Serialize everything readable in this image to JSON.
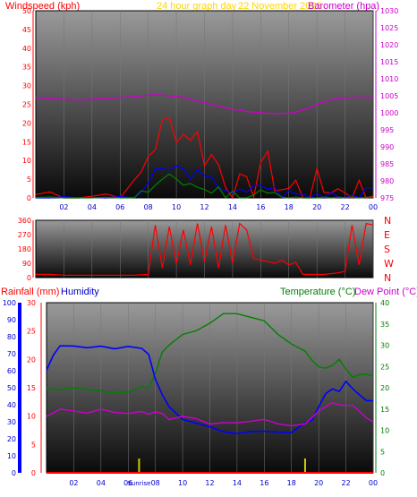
{
  "header": {
    "windspeed_label": "Windspeed (kph)",
    "graph_title": "24 hour graph day",
    "date": "22 November 2025",
    "barometer_label": "Barometer (hpa)"
  },
  "bottom_header": {
    "rainfall_label": "Rainfall (mm)",
    "humidity_label": "Humidity",
    "temperature_label": "Temperature (°C)",
    "dewpoint_label": "Dew Point (°C)"
  },
  "colors": {
    "windspeed": "#ff0000",
    "wind_mid": "#0000ff",
    "wind_low": "#008000",
    "barometer": "#cc00cc",
    "title": "#ffd700",
    "rainfall": "#ff0000",
    "humidity": "#0000ff",
    "temperature": "#008000",
    "dewpoint": "#cc00cc",
    "sun": "#cccc00"
  },
  "chart_data": [
    {
      "type": "line",
      "name": "wind-barometer",
      "x_ticks": [
        "02",
        "04",
        "06",
        "08",
        "10",
        "12",
        "14",
        "16",
        "18",
        "20",
        "22",
        "00"
      ],
      "wind_ticks": [
        "0",
        "5",
        "10",
        "15",
        "20",
        "25",
        "30",
        "35",
        "40",
        "45",
        "50"
      ],
      "baro_ticks": [
        "975",
        "980",
        "985",
        "990",
        "995",
        "1000",
        "1005",
        "1010",
        "1015",
        "1020",
        "1025",
        "1030"
      ],
      "wind_ylim": [
        0,
        50
      ],
      "baro_ylim": [
        975,
        1030
      ],
      "hours": [
        0,
        1,
        2,
        3,
        4,
        5,
        6,
        7,
        7.5,
        8,
        8.5,
        9,
        9.5,
        10,
        10.5,
        11,
        11.5,
        12,
        12.5,
        13,
        13.5,
        14,
        14.5,
        15,
        15.5,
        16,
        16.5,
        17,
        17.5,
        18,
        18.5,
        19,
        19.5,
        20,
        20.5,
        21,
        21.5,
        22,
        22.5,
        23,
        23.5,
        24
      ],
      "wind_gust": [
        1,
        1,
        1,
        1,
        1,
        1,
        1,
        1,
        6,
        12,
        15,
        18,
        20,
        19,
        17,
        18,
        16,
        12,
        11,
        9,
        6,
        3,
        2,
        1,
        4,
        10,
        8,
        5,
        3,
        2,
        3,
        2,
        1,
        3,
        2,
        4,
        2,
        3,
        2,
        2,
        1,
        2
      ],
      "wind_avg": [
        0,
        0,
        0,
        0,
        0,
        0,
        0,
        0,
        2,
        4,
        6,
        7,
        8,
        8,
        7,
        7,
        6,
        5,
        4,
        4,
        3,
        2,
        1,
        1,
        2,
        4,
        3,
        2,
        1,
        1,
        1,
        1,
        0,
        1,
        1,
        2,
        1,
        1,
        1,
        1,
        1,
        1
      ],
      "wind_low": [
        0,
        0,
        0,
        0,
        0,
        0,
        0,
        0,
        1,
        2,
        3,
        4,
        5,
        5,
        4,
        4,
        3,
        2,
        2,
        2,
        1,
        1,
        0,
        0,
        1,
        2,
        1,
        1,
        0,
        0,
        0,
        0,
        0,
        0,
        0,
        1,
        0,
        0,
        0,
        0,
        0,
        0
      ],
      "barometer": [
        1004.5,
        1004.2,
        1004,
        1003.8,
        1004,
        1004.2,
        1004.5,
        1004.8,
        1005,
        1005.2,
        1005.3,
        1005.2,
        1005,
        1004.8,
        1004.5,
        1004,
        1003.5,
        1003,
        1002.5,
        1002,
        1001.5,
        1001,
        1000.8,
        1000.4,
        1000.2,
        1000,
        999.9,
        999.8,
        999.8,
        999.9,
        1000.2,
        1000.8,
        1001.5,
        1002.5,
        1003.2,
        1003.8,
        1004.2,
        1004.4,
        1004.5,
        1004.6,
        1004.5,
        1004.6
      ]
    },
    {
      "type": "line",
      "name": "wind-direction",
      "dir_ticks": [
        "0",
        "90",
        "180",
        "270",
        "360"
      ],
      "compass": [
        "N",
        "W",
        "S",
        "E",
        "N"
      ],
      "ylim": [
        0,
        360
      ],
      "hours": [
        0,
        1,
        2,
        3,
        4,
        5,
        6,
        7,
        8,
        8.5,
        9,
        9.5,
        10,
        10.5,
        11,
        11.5,
        12,
        12.5,
        13,
        13.5,
        14,
        14.5,
        15,
        15.5,
        16,
        16.5,
        17,
        17.5,
        18,
        18.5,
        19,
        19.5,
        20,
        20.5,
        21,
        21.5,
        22,
        22.5,
        23,
        23.5,
        24
      ],
      "direction": [
        20,
        20,
        15,
        15,
        15,
        15,
        15,
        15,
        20,
        330,
        60,
        320,
        90,
        300,
        80,
        340,
        100,
        320,
        60,
        330,
        90,
        340,
        300,
        120,
        110,
        100,
        90,
        110,
        80,
        95,
        20,
        20,
        20,
        20,
        25,
        30,
        40,
        330,
        80,
        340,
        330
      ]
    },
    {
      "type": "line",
      "name": "rain-humidity-temperature",
      "x_ticks": [
        "02",
        "04",
        "06",
        "08",
        "10",
        "12",
        "14",
        "16",
        "18",
        "20",
        "22",
        "00"
      ],
      "humidity_ticks": [
        "0",
        "10",
        "20",
        "30",
        "40",
        "50",
        "60",
        "70",
        "80",
        "90",
        "100"
      ],
      "rain_ticks": [
        "0",
        "5",
        "10",
        "15",
        "20",
        "25",
        "30"
      ],
      "temp_ticks": [
        "0",
        "5",
        "10",
        "15",
        "20",
        "25",
        "30",
        "35",
        "40"
      ],
      "humidity_ylim": [
        0,
        100
      ],
      "rain_ylim": [
        0,
        30
      ],
      "temp_ylim": [
        0,
        40
      ],
      "sunrise_label": "Sunrise",
      "sunset_label": "",
      "sunrise_hour": 6.8,
      "sunset_hour": 19.0,
      "hours": [
        0,
        0.5,
        1,
        2,
        3,
        4,
        5,
        6,
        7,
        7.5,
        8,
        8.5,
        9,
        10,
        11,
        12,
        13,
        14,
        15,
        16,
        17,
        18,
        19,
        19.5,
        20,
        20.5,
        21,
        21.5,
        22,
        22.5,
        23,
        23.5,
        24
      ],
      "humidity": [
        60,
        70,
        74,
        74,
        74,
        74,
        74,
        74,
        74,
        70,
        55,
        45,
        38,
        32,
        28,
        26,
        24,
        22,
        23,
        24,
        25,
        24,
        28,
        32,
        38,
        45,
        50,
        48,
        55,
        48,
        45,
        42,
        42
      ],
      "temperature": [
        20,
        19,
        19.5,
        19.5,
        19.5,
        19.5,
        19.5,
        19.5,
        19.5,
        20,
        24,
        28,
        30,
        32,
        34,
        35,
        37,
        37.5,
        37,
        36,
        33,
        30,
        28,
        26,
        25,
        24,
        25,
        26,
        24,
        23,
        23,
        22.5,
        22.5
      ],
      "dewpoint": [
        13,
        14,
        14.5,
        14.5,
        14.5,
        14.5,
        14.5,
        14.5,
        14.5,
        14,
        14,
        13.5,
        13,
        13,
        12.5,
        12,
        12,
        12,
        12,
        12,
        12,
        11.5,
        12,
        13,
        15,
        16,
        16,
        15.5,
        16,
        15.5,
        14,
        13,
        12
      ],
      "rainfall": [
        0,
        0,
        0,
        0,
        0,
        0,
        0,
        0,
        0,
        0,
        0,
        0,
        0,
        0,
        0,
        0,
        0,
        0,
        0,
        0,
        0,
        0,
        0,
        0,
        0,
        0,
        0,
        0,
        0,
        0,
        0,
        0,
        0
      ]
    }
  ]
}
